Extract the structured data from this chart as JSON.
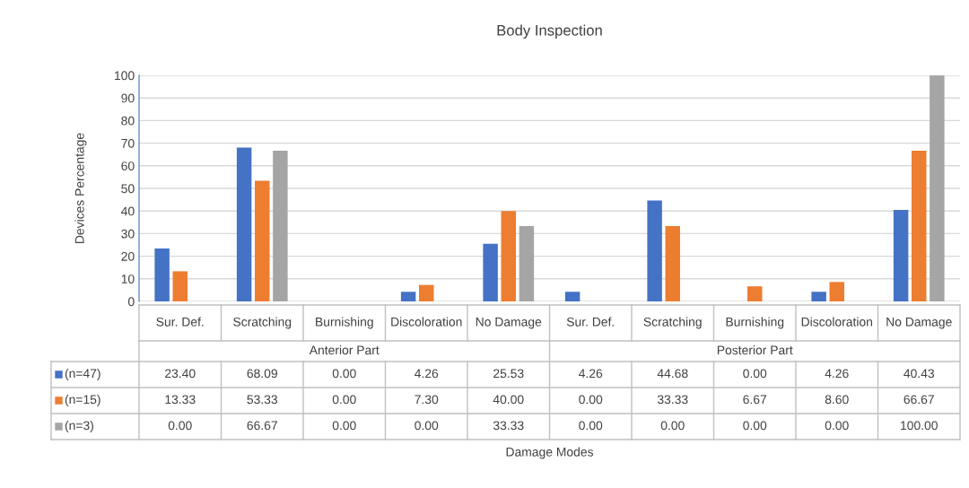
{
  "chart_data": {
    "type": "bar",
    "title": "Body Inspection",
    "ylabel": "Devices Percentage",
    "categories": [
      "Sur. Def.",
      "Scratching",
      "Burnishing",
      "Discoloration",
      "No Damage",
      "Sur. Def.",
      "Scratching",
      "Burnishing",
      "Discoloration",
      "No Damage"
    ],
    "series": [
      {
        "name": "(n=47)",
        "color": "#4472c4",
        "values": [
          23.4,
          68.09,
          0.0,
          4.26,
          25.53,
          4.26,
          44.68,
          0.0,
          4.26,
          40.43
        ],
        "value_labels": [
          "23.40",
          "68.09",
          "0.00",
          "4.26",
          "25.53",
          "4.26",
          "44.68",
          "0.00",
          "4.26",
          "40.43"
        ]
      },
      {
        "name": "(n=15)",
        "color": "#ed7d31",
        "values": [
          13.33,
          53.33,
          0.0,
          7.3,
          40.0,
          0.0,
          33.33,
          6.67,
          8.6,
          66.67
        ],
        "value_labels": [
          "13.33",
          "53.33",
          "0.00",
          "7.30",
          "40.00",
          "0.00",
          "33.33",
          "6.67",
          "8.60",
          "66.67"
        ]
      },
      {
        "name": "(n=3)",
        "color": "#a5a5a5",
        "values": [
          0.0,
          66.67,
          0.0,
          0.0,
          33.33,
          0.0,
          0.0,
          0.0,
          0.0,
          100.0
        ],
        "value_labels": [
          "0.00",
          "66.67",
          "0.00",
          "0.00",
          "33.33",
          "0.00",
          "0.00",
          "0.00",
          "0.00",
          "100.00"
        ]
      }
    ],
    "annotations": [
      "Anterior Part",
      "Posterior Part",
      "Damage Modes"
    ],
    "ylim": [
      0,
      100
    ],
    "yticks": [
      0,
      10,
      20,
      30,
      40,
      50,
      60,
      70,
      80,
      90,
      100
    ],
    "grid": "y",
    "legend": "bottom"
  }
}
